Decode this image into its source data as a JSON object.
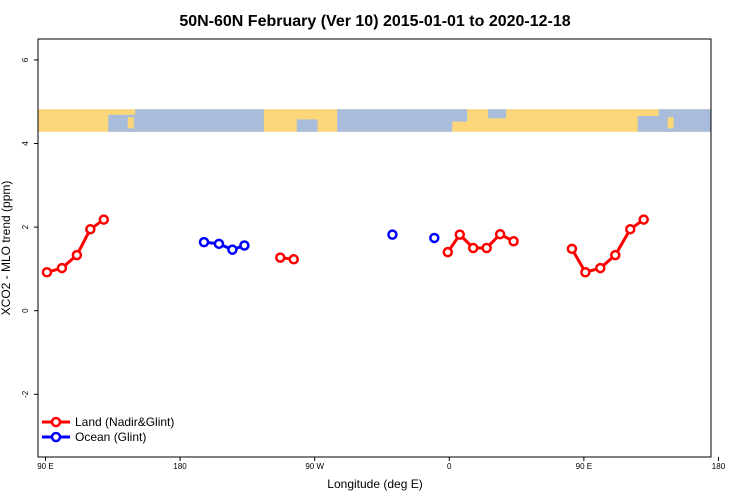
{
  "chart_data": {
    "type": "line",
    "title": "50N-60N February (Ver 10)   2015-01-01 to 2020-12-18",
    "xlabel": "Longitude (deg E)",
    "ylabel": "XCO2 - MLO trend (ppm)",
    "xlim": [
      90,
      450
    ],
    "ylim": [
      -3.5,
      6.5
    ],
    "x_ticks": [
      90,
      180,
      270,
      360,
      450,
      540
    ],
    "x_tick_labels": [
      "90 E",
      "180",
      "90 W",
      "0",
      "90 E",
      "180"
    ],
    "y_ticks": [
      -2,
      0,
      2,
      4,
      6
    ],
    "y_tick_labels": [
      "-2",
      "0",
      "2",
      "4",
      "6"
    ],
    "x_domain": [
      85,
      535
    ],
    "legend_position": "bottom-left",
    "background_map_band": {
      "y_range": [
        4.28,
        4.82
      ],
      "ocean_color": "#a8bcdc",
      "land_color": "#fcd779"
    },
    "series": [
      {
        "name": "Land (Nadir&Glint)",
        "color": "#ff0000",
        "segments": [
          [
            [
              91,
              0.92
            ],
            [
              101,
              1.02
            ],
            [
              111,
              1.33
            ],
            [
              120,
              1.95
            ],
            [
              129,
              2.18
            ]
          ],
          [
            [
              247,
              1.27
            ],
            [
              256,
              1.23
            ]
          ],
          [
            [
              359,
              1.4
            ],
            [
              367,
              1.82
            ],
            [
              376,
              1.5
            ],
            [
              385,
              1.5
            ],
            [
              394,
              1.83
            ],
            [
              403,
              1.66
            ]
          ],
          [
            [
              442,
              1.48
            ],
            [
              451,
              0.92
            ],
            [
              461,
              1.02
            ],
            [
              471,
              1.33
            ],
            [
              481,
              1.95
            ],
            [
              490,
              2.18
            ]
          ]
        ]
      },
      {
        "name": "Ocean (Glint)",
        "color": "#0000ff",
        "segments": [
          [
            [
              196,
              1.64
            ],
            [
              206,
              1.6
            ],
            [
              215,
              1.46
            ],
            [
              223,
              1.56
            ]
          ],
          [
            [
              322,
              1.82
            ]
          ],
          [
            [
              350,
              1.74
            ]
          ]
        ]
      }
    ]
  }
}
